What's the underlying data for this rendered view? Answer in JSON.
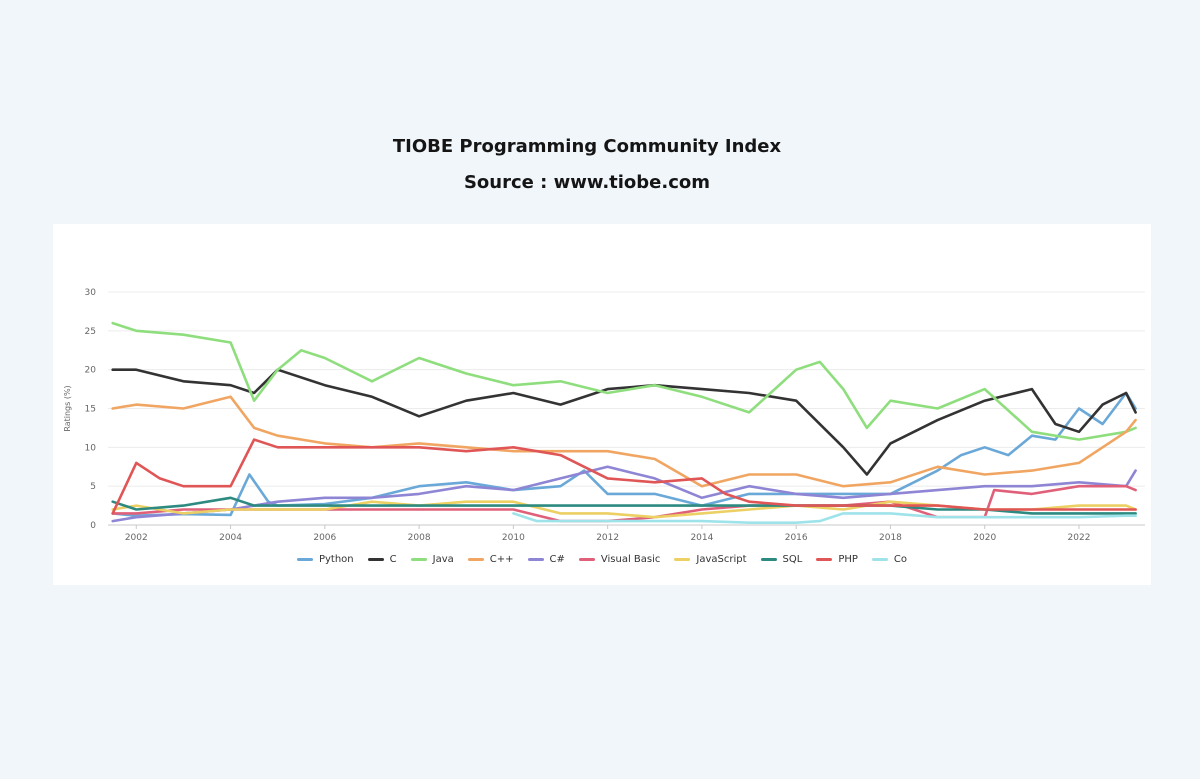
{
  "header": {
    "title": "TIOBE Programming Community Index",
    "subtitle": "Source : www.tiobe.com"
  },
  "chart_data": {
    "type": "line",
    "title": "TIOBE Programming Community Index",
    "subtitle": "Source : www.tiobe.com",
    "ylabel": "Ratings (%)",
    "xlabel": "",
    "ylim": [
      0,
      30
    ],
    "xlim": [
      2001.4,
      2023.4
    ],
    "x_ticks": [
      "2002",
      "2004",
      "2006",
      "2008",
      "2010",
      "2012",
      "2014",
      "2016",
      "2018",
      "2020",
      "2022"
    ],
    "y_ticks": [
      "0",
      "5",
      "10",
      "15",
      "20",
      "25",
      "30"
    ],
    "grid": true,
    "legend_position": "bottom",
    "series": [
      {
        "name": "Python",
        "color": "#6aa8d8",
        "x": [
          2001.5,
          2002,
          2003,
          2004,
          2004.4,
          2004.8,
          2005,
          2006,
          2007,
          2008,
          2009,
          2010,
          2011,
          2011.5,
          2012,
          2013,
          2014,
          2015,
          2016,
          2017,
          2018,
          2019,
          2019.5,
          2020,
          2020.5,
          2021,
          2021.5,
          2022,
          2022.5,
          2023,
          2023.2
        ],
        "values": [
          1.5,
          1.2,
          1.4,
          1.3,
          6.5,
          3,
          2.5,
          2.7,
          3.5,
          5,
          5.5,
          4.5,
          5,
          7,
          4,
          4,
          2.5,
          4,
          4,
          4,
          4,
          7,
          9,
          10,
          9,
          11.5,
          11,
          15,
          13,
          17,
          15
        ]
      },
      {
        "name": "C",
        "color": "#333333",
        "x": [
          2001.5,
          2002,
          2003,
          2004,
          2004.5,
          2005,
          2006,
          2007,
          2008,
          2009,
          2010,
          2011,
          2012,
          2013,
          2014,
          2015,
          2016,
          2017,
          2017.5,
          2018,
          2019,
          2020,
          2021,
          2021.5,
          2022,
          2022.5,
          2023,
          2023.2
        ],
        "values": [
          20,
          20,
          18.5,
          18,
          17,
          20,
          18,
          16.5,
          14,
          16,
          17,
          15.5,
          17.5,
          18,
          17.5,
          17,
          16,
          10,
          6.5,
          10.5,
          13.5,
          16,
          17.5,
          13,
          12,
          15.5,
          17,
          14.5
        ]
      },
      {
        "name": "Java",
        "color": "#8ede7d",
        "x": [
          2001.5,
          2002,
          2003,
          2004,
          2004.5,
          2005,
          2005.5,
          2006,
          2007,
          2008,
          2009,
          2010,
          2011,
          2012,
          2013,
          2014,
          2015,
          2016,
          2016.5,
          2017,
          2017.5,
          2018,
          2019,
          2020,
          2021,
          2022,
          2023,
          2023.2
        ],
        "values": [
          26,
          25,
          24.5,
          23.5,
          16,
          20,
          22.5,
          21.5,
          18.5,
          21.5,
          19.5,
          18,
          18.5,
          17,
          18,
          16.5,
          14.5,
          20,
          21,
          17.5,
          12.5,
          16,
          15,
          17.5,
          12,
          11,
          12,
          12.5
        ]
      },
      {
        "name": "C++",
        "color": "#f0a662",
        "x": [
          2001.5,
          2002,
          2003,
          2004,
          2004.5,
          2005,
          2006,
          2007,
          2008,
          2009,
          2010,
          2011,
          2012,
          2013,
          2014,
          2015,
          2016,
          2017,
          2018,
          2019,
          2020,
          2021,
          2022,
          2023,
          2023.2
        ],
        "values": [
          15,
          15.5,
          15,
          16.5,
          12.5,
          11.5,
          10.5,
          10,
          10.5,
          10,
          9.5,
          9.5,
          9.5,
          8.5,
          5,
          6.5,
          6.5,
          5,
          5.5,
          7.5,
          6.5,
          7,
          8,
          12,
          13.5
        ]
      },
      {
        "name": "C#",
        "color": "#8e85d4",
        "x": [
          2001.5,
          2002,
          2003,
          2004,
          2005,
          2006,
          2007,
          2008,
          2009,
          2010,
          2011,
          2012,
          2013,
          2014,
          2015,
          2016,
          2017,
          2018,
          2019,
          2020,
          2021,
          2022,
          2023,
          2023.2
        ],
        "values": [
          0.5,
          1,
          1.5,
          2,
          3,
          3.5,
          3.5,
          4,
          5,
          4.5,
          6,
          7.5,
          6,
          3.5,
          5,
          4,
          3.5,
          4,
          4.5,
          5,
          5,
          5.5,
          5,
          7
        ]
      },
      {
        "name": "Visual Basic",
        "color": "#e0607a",
        "x": [
          2001.5,
          2002,
          2003,
          2004,
          2005,
          2006,
          2007,
          2008,
          2009,
          2010,
          2011,
          2012,
          2013,
          2014,
          2015,
          2016,
          2017,
          2018,
          2019,
          2020,
          2020.2,
          2021,
          2022,
          2023,
          2023.2
        ],
        "values": [
          1.5,
          1.5,
          2,
          2,
          2,
          2,
          2,
          2,
          2,
          2,
          0.5,
          0.5,
          1,
          2,
          2.5,
          2.5,
          2.5,
          3,
          1,
          1,
          4.5,
          4,
          5,
          5,
          4.5
        ]
      },
      {
        "name": "JavaScript",
        "color": "#ecd063",
        "x": [
          2001.5,
          2002,
          2003,
          2004,
          2005,
          2006,
          2007,
          2008,
          2009,
          2010,
          2011,
          2012,
          2013,
          2014,
          2015,
          2016,
          2017,
          2018,
          2019,
          2020,
          2021,
          2022,
          2023,
          2023.2
        ],
        "values": [
          2,
          2.5,
          1.5,
          2,
          2,
          2,
          3,
          2.5,
          3,
          3,
          1.5,
          1.5,
          1,
          1.5,
          2,
          2.5,
          2,
          3,
          2.5,
          2,
          2,
          2.5,
          2.5,
          2
        ]
      },
      {
        "name": "SQL",
        "color": "#2c8a80",
        "x": [
          2001.5,
          2002,
          2003,
          2004,
          2004.5,
          2005,
          2006,
          2007,
          2008,
          2009,
          2010,
          2011,
          2012,
          2013,
          2014,
          2015,
          2016,
          2017,
          2018,
          2019,
          2020,
          2021,
          2022,
          2023,
          2023.2
        ],
        "values": [
          3,
          2,
          2.5,
          3.5,
          2.5,
          2.5,
          2.5,
          2.5,
          2.5,
          2.5,
          2.5,
          2.5,
          2.5,
          2.5,
          2.5,
          2.5,
          2.5,
          2.5,
          2.5,
          2,
          2,
          1.5,
          1.5,
          1.5,
          1.5
        ]
      },
      {
        "name": "PHP",
        "color": "#e05555",
        "x": [
          2001.5,
          2002,
          2002.5,
          2003,
          2003.5,
          2004,
          2004.5,
          2005,
          2006,
          2007,
          2008,
          2009,
          2010,
          2011,
          2012,
          2013,
          2014,
          2014.5,
          2015,
          2016,
          2017,
          2018,
          2019,
          2020,
          2021,
          2022,
          2023,
          2023.2
        ],
        "values": [
          1.5,
          8,
          6,
          5,
          5,
          5,
          11,
          10,
          10,
          10,
          10,
          9.5,
          10,
          9,
          6,
          5.5,
          6,
          4,
          3,
          2.5,
          2.5,
          2.5,
          2.5,
          2,
          2,
          2,
          2,
          2
        ]
      },
      {
        "name": "Co",
        "color": "#9fe3ea",
        "x": [
          2010,
          2010.5,
          2011,
          2012,
          2013,
          2014,
          2015,
          2016,
          2016.5,
          2017,
          2018,
          2019,
          2020,
          2021,
          2022,
          2023,
          2023.2
        ],
        "values": [
          1.5,
          0.5,
          0.5,
          0.5,
          0.5,
          0.5,
          0.3,
          0.3,
          0.5,
          1.5,
          1.5,
          1,
          1,
          1,
          1,
          1.2,
          1.2
        ]
      }
    ]
  }
}
